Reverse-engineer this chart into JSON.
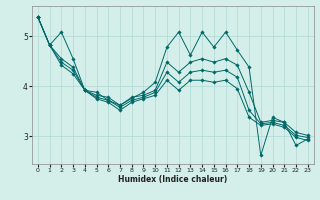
{
  "xlabel": "Humidex (Indice chaleur)",
  "bg_color": "#d4eeea",
  "grid_color": "#b0d8d4",
  "line_color": "#006868",
  "xlim": [
    -0.5,
    23.5
  ],
  "ylim": [
    2.45,
    5.6
  ],
  "yticks": [
    3,
    4,
    5
  ],
  "xticks": [
    0,
    1,
    2,
    3,
    4,
    5,
    6,
    7,
    8,
    9,
    10,
    11,
    12,
    13,
    14,
    15,
    16,
    17,
    18,
    19,
    20,
    21,
    22,
    23
  ],
  "series": [
    [
      5.38,
      4.82,
      5.08,
      4.55,
      3.92,
      3.88,
      3.72,
      3.62,
      3.76,
      3.88,
      4.08,
      4.78,
      5.08,
      4.62,
      5.08,
      4.78,
      5.08,
      4.72,
      4.38,
      2.62,
      3.38,
      3.28,
      2.82,
      2.95
    ],
    [
      5.38,
      4.82,
      4.55,
      4.38,
      3.92,
      3.82,
      3.78,
      3.62,
      3.78,
      3.82,
      3.92,
      4.48,
      4.28,
      4.48,
      4.55,
      4.48,
      4.55,
      4.42,
      3.88,
      3.28,
      3.32,
      3.28,
      3.08,
      3.02
    ],
    [
      5.38,
      4.82,
      4.48,
      4.32,
      3.92,
      3.78,
      3.72,
      3.58,
      3.72,
      3.78,
      3.88,
      4.28,
      4.08,
      4.28,
      4.32,
      4.28,
      4.32,
      4.18,
      3.52,
      3.25,
      3.28,
      3.22,
      3.02,
      2.98
    ],
    [
      5.38,
      4.82,
      4.42,
      4.25,
      3.92,
      3.75,
      3.68,
      3.52,
      3.68,
      3.75,
      3.82,
      4.12,
      3.92,
      4.12,
      4.12,
      4.08,
      4.12,
      3.95,
      3.38,
      3.22,
      3.25,
      3.18,
      2.98,
      2.92
    ]
  ]
}
